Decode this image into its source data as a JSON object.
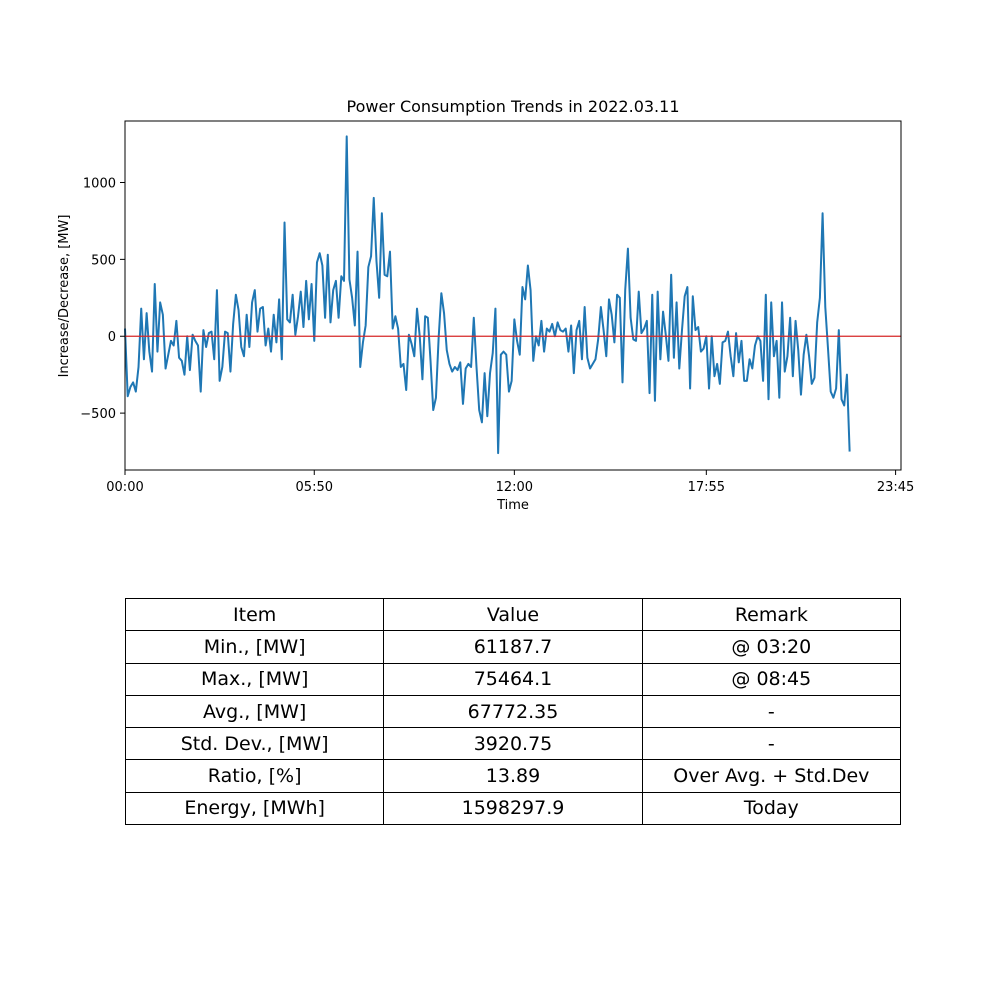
{
  "chart_data": {
    "type": "line",
    "title": "Power Consumption Trends in 2022.03.11",
    "xlabel": "Time",
    "ylabel": "Increase/Decrease, [MW]",
    "xlim": [
      0,
      287
    ],
    "ylim": [
      -870,
      1400
    ],
    "x_ticks": [
      {
        "label": "00:00",
        "pos": 0
      },
      {
        "label": "05:50",
        "pos": 70
      },
      {
        "label": "12:00",
        "pos": 144
      },
      {
        "label": "17:55",
        "pos": 215
      },
      {
        "label": "23:45",
        "pos": 285
      }
    ],
    "y_ticks": [
      -500,
      0,
      500,
      1000
    ],
    "grid": false,
    "colors": {
      "series": "#1f77b4",
      "reference": "#d62728"
    },
    "reference_line": {
      "y": 0
    },
    "series": [
      {
        "sampling": "5-minute intervals from 00:00",
        "values": [
          50,
          -390,
          -330,
          -300,
          -360,
          -200,
          180,
          -150,
          150,
          -100,
          -230,
          340,
          -100,
          220,
          140,
          -210,
          -120,
          -30,
          -60,
          100,
          -140,
          -160,
          -250,
          0,
          -220,
          10,
          -30,
          -60,
          -360,
          40,
          -70,
          20,
          30,
          -150,
          300,
          -290,
          -200,
          30,
          20,
          -230,
          80,
          270,
          170,
          -70,
          -130,
          140,
          -70,
          220,
          300,
          30,
          180,
          190,
          -60,
          50,
          -100,
          140,
          -40,
          240,
          -150,
          740,
          110,
          90,
          270,
          10,
          130,
          290,
          60,
          360,
          110,
          340,
          -30,
          480,
          540,
          460,
          120,
          530,
          90,
          300,
          360,
          120,
          390,
          360,
          1300,
          370,
          250,
          70,
          550,
          -200,
          -40,
          70,
          450,
          520,
          900,
          490,
          250,
          800,
          400,
          390,
          550,
          50,
          130,
          50,
          -200,
          -180,
          -350,
          10,
          -50,
          -130,
          180,
          0,
          -280,
          130,
          120,
          -160,
          -480,
          -400,
          -10,
          280,
          150,
          -90,
          -180,
          -230,
          -200,
          -220,
          -170,
          -440,
          -210,
          -180,
          -200,
          120,
          -200,
          -480,
          -560,
          -240,
          -520,
          -240,
          -110,
          180,
          -760,
          -120,
          -100,
          -120,
          -360,
          -290,
          110,
          -30,
          -120,
          320,
          240,
          460,
          300,
          -160,
          0,
          -60,
          100,
          -100,
          50,
          30,
          80,
          0,
          90,
          40,
          30,
          50,
          -100,
          70,
          -240,
          40,
          100,
          -150,
          190,
          -140,
          -210,
          -180,
          -150,
          -20,
          190,
          40,
          -130,
          240,
          140,
          -40,
          270,
          250,
          -300,
          300,
          570,
          120,
          -20,
          -30,
          290,
          20,
          50,
          100,
          -370,
          270,
          -420,
          290,
          -150,
          160,
          10,
          -160,
          400,
          -140,
          220,
          -210,
          40,
          260,
          320,
          -340,
          260,
          40,
          60,
          -100,
          -80,
          0,
          -340,
          0,
          -260,
          -180,
          -310,
          -40,
          -30,
          30,
          -130,
          -260,
          20,
          -170,
          -30,
          -290,
          -290,
          -150,
          -210,
          -60,
          0,
          -30,
          -290,
          270,
          -410,
          220,
          -130,
          -30,
          -400,
          220,
          -230,
          -130,
          120,
          -260,
          100,
          -90,
          -380,
          -120,
          10,
          -130,
          -310,
          -270,
          90,
          250,
          800,
          190,
          -80,
          -360,
          -400,
          -340,
          40,
          -410,
          -450,
          -250,
          -750
        ]
      }
    ]
  },
  "stats_table": {
    "rows": [
      [
        "Item",
        "Value",
        "Remark"
      ],
      [
        "Min., [MW]",
        "61187.7",
        "@ 03:20"
      ],
      [
        "Max., [MW]",
        "75464.1",
        "@ 08:45"
      ],
      [
        "Avg., [MW]",
        "67772.35",
        "-"
      ],
      [
        "Std. Dev., [MW]",
        "3920.75",
        "-"
      ],
      [
        "Ratio, [%]",
        "13.89",
        "Over Avg. + Std.Dev"
      ],
      [
        "Energy, [MWh]",
        "1598297.9",
        "Today"
      ]
    ]
  }
}
